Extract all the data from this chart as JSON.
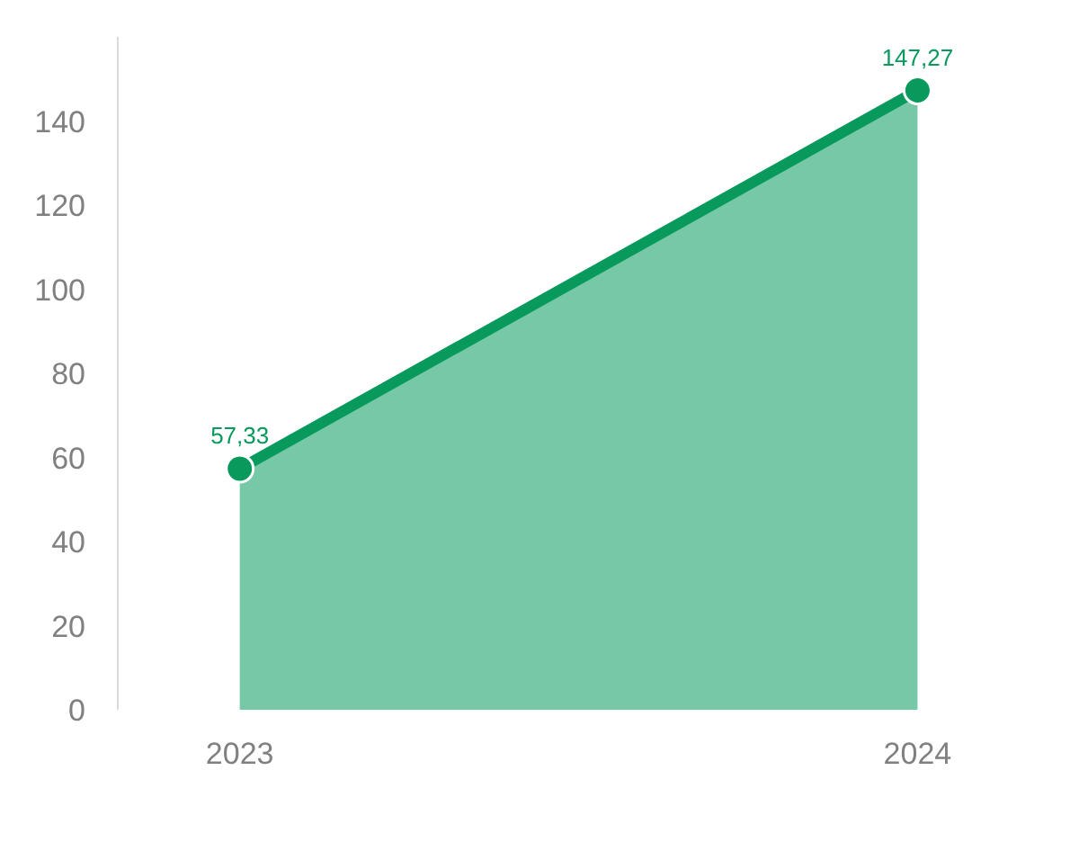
{
  "chart_data": {
    "type": "area",
    "categories": [
      "2023",
      "2024"
    ],
    "series": [
      {
        "color": "#079a5c",
        "values": [
          57.33,
          147.27
        ],
        "value_labels": [
          "57,33",
          "147,27"
        ]
      }
    ],
    "ylim": [
      0,
      160
    ],
    "yticks": [
      0,
      20,
      40,
      60,
      80,
      100,
      120,
      140
    ],
    "grid": false,
    "marker": "circle",
    "line_style": "solid"
  }
}
